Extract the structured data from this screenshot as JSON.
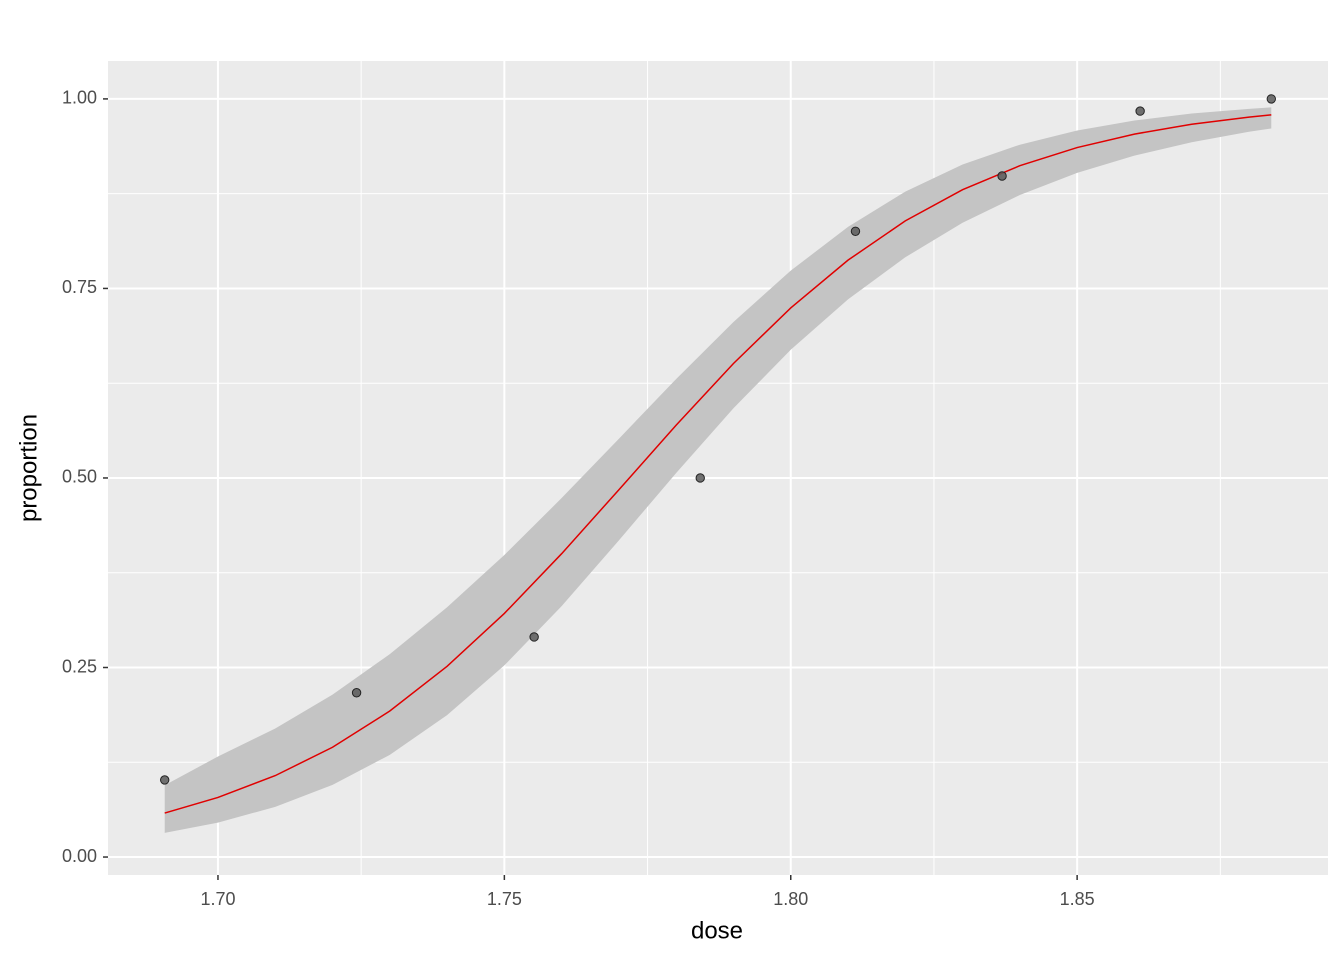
{
  "chart_data": {
    "type": "scatter",
    "x_label": "dose",
    "y_label": "proportion",
    "x": [
      1.6907,
      1.7242,
      1.7552,
      1.7842,
      1.8113,
      1.8369,
      1.861,
      1.8839
    ],
    "values": [
      0.1017,
      0.2167,
      0.2903,
      0.5,
      0.8254,
      0.8983,
      0.9839,
      1.0
    ],
    "color": "#595959",
    "fit": {
      "color": "#e00000",
      "band_color": "#c4c4c4",
      "x": [
        1.6907,
        1.7,
        1.71,
        1.72,
        1.73,
        1.74,
        1.75,
        1.76,
        1.77,
        1.78,
        1.79,
        1.8,
        1.81,
        1.82,
        1.83,
        1.84,
        1.85,
        1.86,
        1.87,
        1.88,
        1.8839
      ],
      "values": [
        0.058,
        0.0786,
        0.1074,
        0.1448,
        0.1926,
        0.2516,
        0.3213,
        0.4001,
        0.4845,
        0.5697,
        0.651,
        0.7243,
        0.7873,
        0.8391,
        0.8802,
        0.9119,
        0.9358,
        0.9536,
        0.9666,
        0.976,
        0.979
      ],
      "lower": [
        0.0318,
        0.0454,
        0.0662,
        0.0951,
        0.1348,
        0.1871,
        0.2528,
        0.3309,
        0.4177,
        0.5066,
        0.592,
        0.6691,
        0.7355,
        0.7911,
        0.8366,
        0.8732,
        0.9024,
        0.9252,
        0.9429,
        0.9566,
        0.961
      ],
      "upper": [
        0.0947,
        0.1326,
        0.1695,
        0.2142,
        0.2676,
        0.3294,
        0.3984,
        0.4735,
        0.5518,
        0.6306,
        0.7057,
        0.7735,
        0.8312,
        0.8777,
        0.9134,
        0.9396,
        0.9583,
        0.9715,
        0.9807,
        0.9869,
        0.9888
      ]
    },
    "xlim": [
      1.6808,
      1.8938
    ],
    "ylim": [
      -0.0237,
      1.05
    ],
    "xticks": [
      {
        "value": 1.7,
        "label": "1.70"
      },
      1.75,
      {
        "value": 1.8,
        "label": "1.80"
      },
      1.85
    ],
    "yticks": [
      {
        "value": 0,
        "label": "0.00"
      },
      0.25,
      {
        "value": 0.5,
        "label": "0.50"
      },
      0.75,
      {
        "value": 1,
        "label": "1.00"
      }
    ],
    "xminor": [
      1.725,
      1.775,
      1.825,
      1.875
    ],
    "yminor": [
      0.125,
      0.375,
      0.625,
      0.875
    ],
    "grid": true
  }
}
